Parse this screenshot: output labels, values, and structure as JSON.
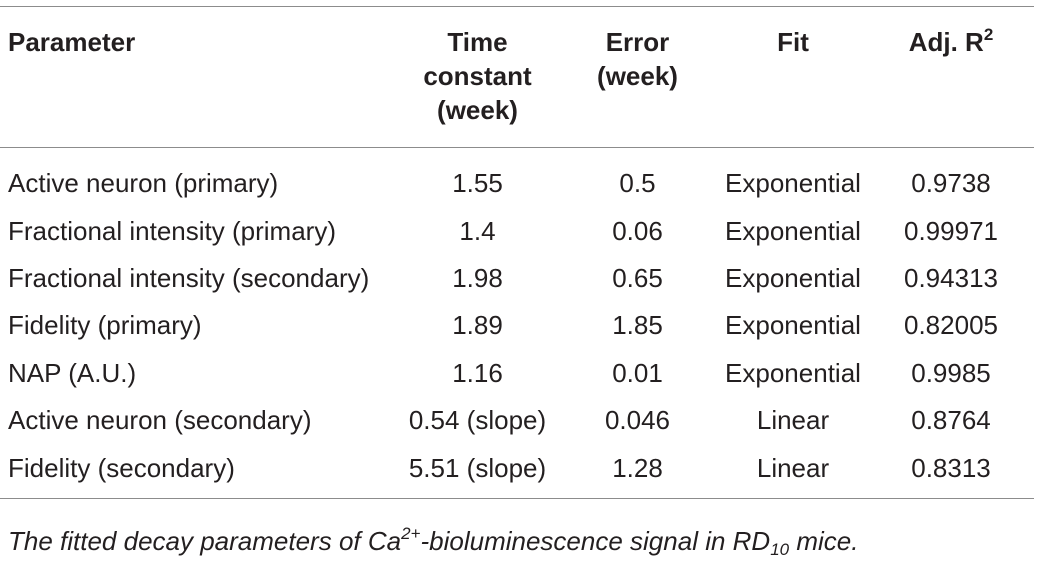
{
  "table": {
    "headers": {
      "parameter": "Parameter",
      "time_constant": [
        "Time",
        "constant",
        "(week)"
      ],
      "error": [
        "Error",
        "(week)"
      ],
      "fit": "Fit",
      "adj_r2": {
        "base": "Adj. R",
        "sup": "2"
      }
    },
    "rows": [
      {
        "parameter": "Active neuron (primary)",
        "time_constant": "1.55",
        "error": "0.5",
        "fit": "Exponential",
        "adj_r2": "0.9738"
      },
      {
        "parameter": "Fractional intensity (primary)",
        "time_constant": "1.4",
        "error": "0.06",
        "fit": "Exponential",
        "adj_r2": "0.99971"
      },
      {
        "parameter": "Fractional intensity (secondary)",
        "time_constant": "1.98",
        "error": "0.65",
        "fit": "Exponential",
        "adj_r2": "0.94313"
      },
      {
        "parameter": "Fidelity (primary)",
        "time_constant": "1.89",
        "error": "1.85",
        "fit": "Exponential",
        "adj_r2": "0.82005"
      },
      {
        "parameter": "NAP (A.U.)",
        "time_constant": "1.16",
        "error": "0.01",
        "fit": "Exponential",
        "adj_r2": "0.9985"
      },
      {
        "parameter": "Active neuron (secondary)",
        "time_constant": "0.54 (slope)",
        "error": "0.046",
        "fit": "Linear",
        "adj_r2": "0.8764"
      },
      {
        "parameter": "Fidelity (secondary)",
        "time_constant": "5.51 (slope)",
        "error": "1.28",
        "fit": "Linear",
        "adj_r2": "0.8313"
      }
    ]
  },
  "caption": {
    "pre": "The fitted decay parameters of Ca",
    "sup": "2+",
    "mid": "-bioluminescence signal in RD",
    "sub": "10",
    "post": " mice."
  }
}
